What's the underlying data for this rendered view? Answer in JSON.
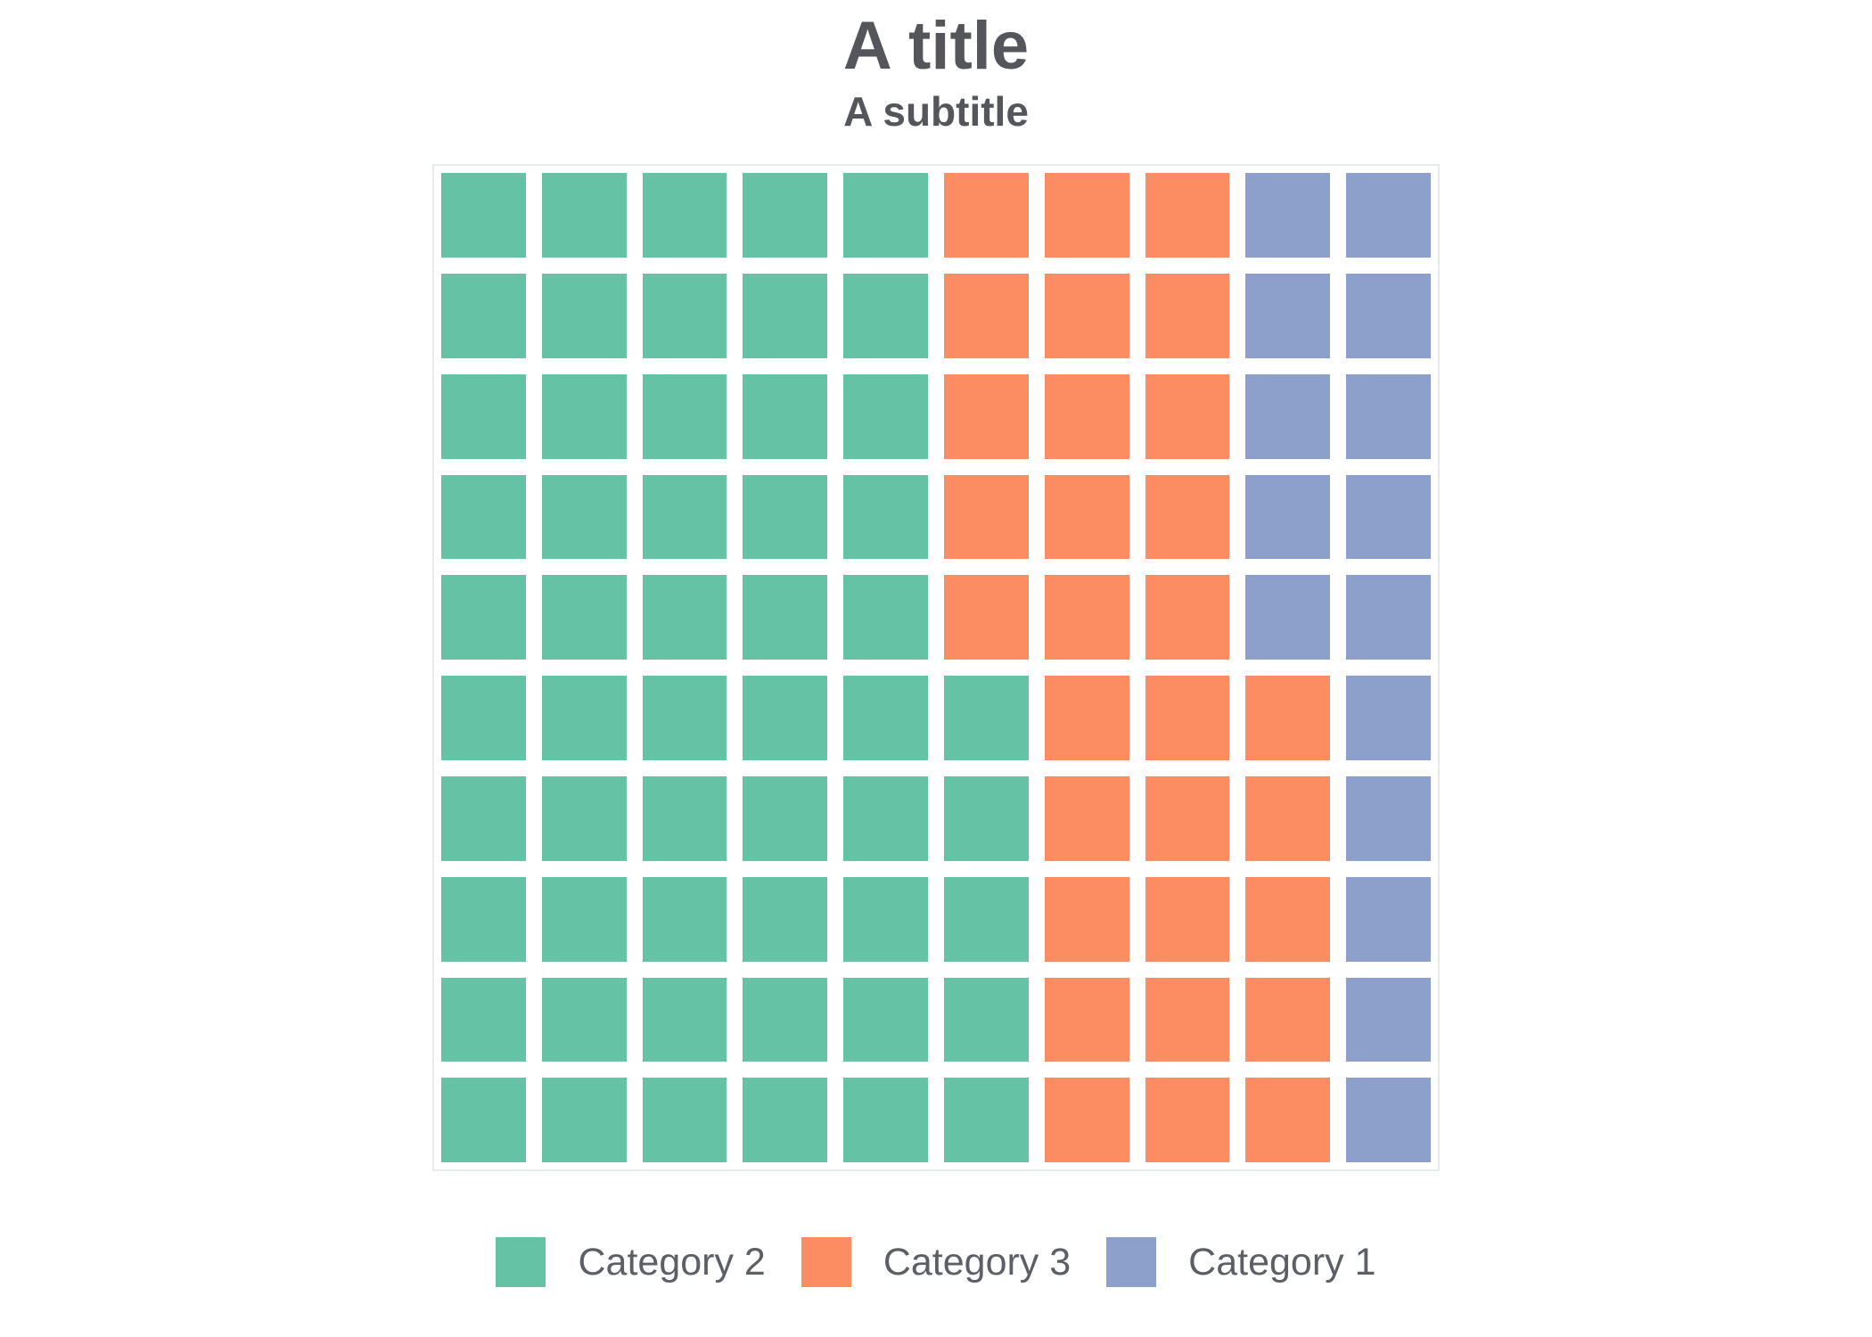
{
  "chart": {
    "title": "A title",
    "subtitle": "A subtitle"
  },
  "chart_data": {
    "type": "waffle",
    "title": "A title",
    "subtitle": "A subtitle",
    "grid": {
      "rows": 10,
      "columns": 10,
      "total_cells": 100,
      "fill_order": "column-major, bottom-to-top, left-to-right"
    },
    "series": [
      {
        "name": "Category 2",
        "value": 55,
        "color": "#66c2a5"
      },
      {
        "name": "Category 3",
        "value": 30,
        "color": "#fc8d62"
      },
      {
        "name": "Category 1",
        "value": 15,
        "color": "#8da0cb"
      }
    ],
    "legend_position": "bottom",
    "plot_border_color": "#e6ebe8"
  },
  "legend": {
    "items": [
      {
        "label": "Category 2",
        "color": "#66c2a5"
      },
      {
        "label": "Category 3",
        "color": "#fc8d62"
      },
      {
        "label": "Category 1",
        "color": "#8da0cb"
      }
    ]
  }
}
